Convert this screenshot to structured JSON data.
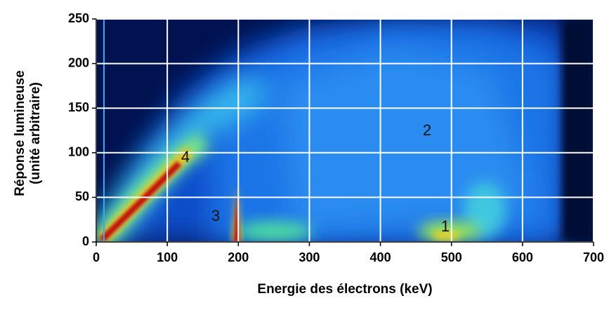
{
  "chart_data": {
    "type": "density",
    "xlabel": "Energie des électrons (keV)",
    "ylabel": [
      "Réponse lumineuse",
      "(unité arbitraire)"
    ],
    "xlim": [
      0,
      700
    ],
    "ylim": [
      0,
      250
    ],
    "xticks": [
      0,
      100,
      200,
      300,
      400,
      500,
      600,
      700
    ],
    "yticks": [
      0,
      50,
      100,
      150,
      200,
      250
    ],
    "grid": true,
    "annotations": [
      "1",
      "2",
      "3",
      "4"
    ]
  }
}
